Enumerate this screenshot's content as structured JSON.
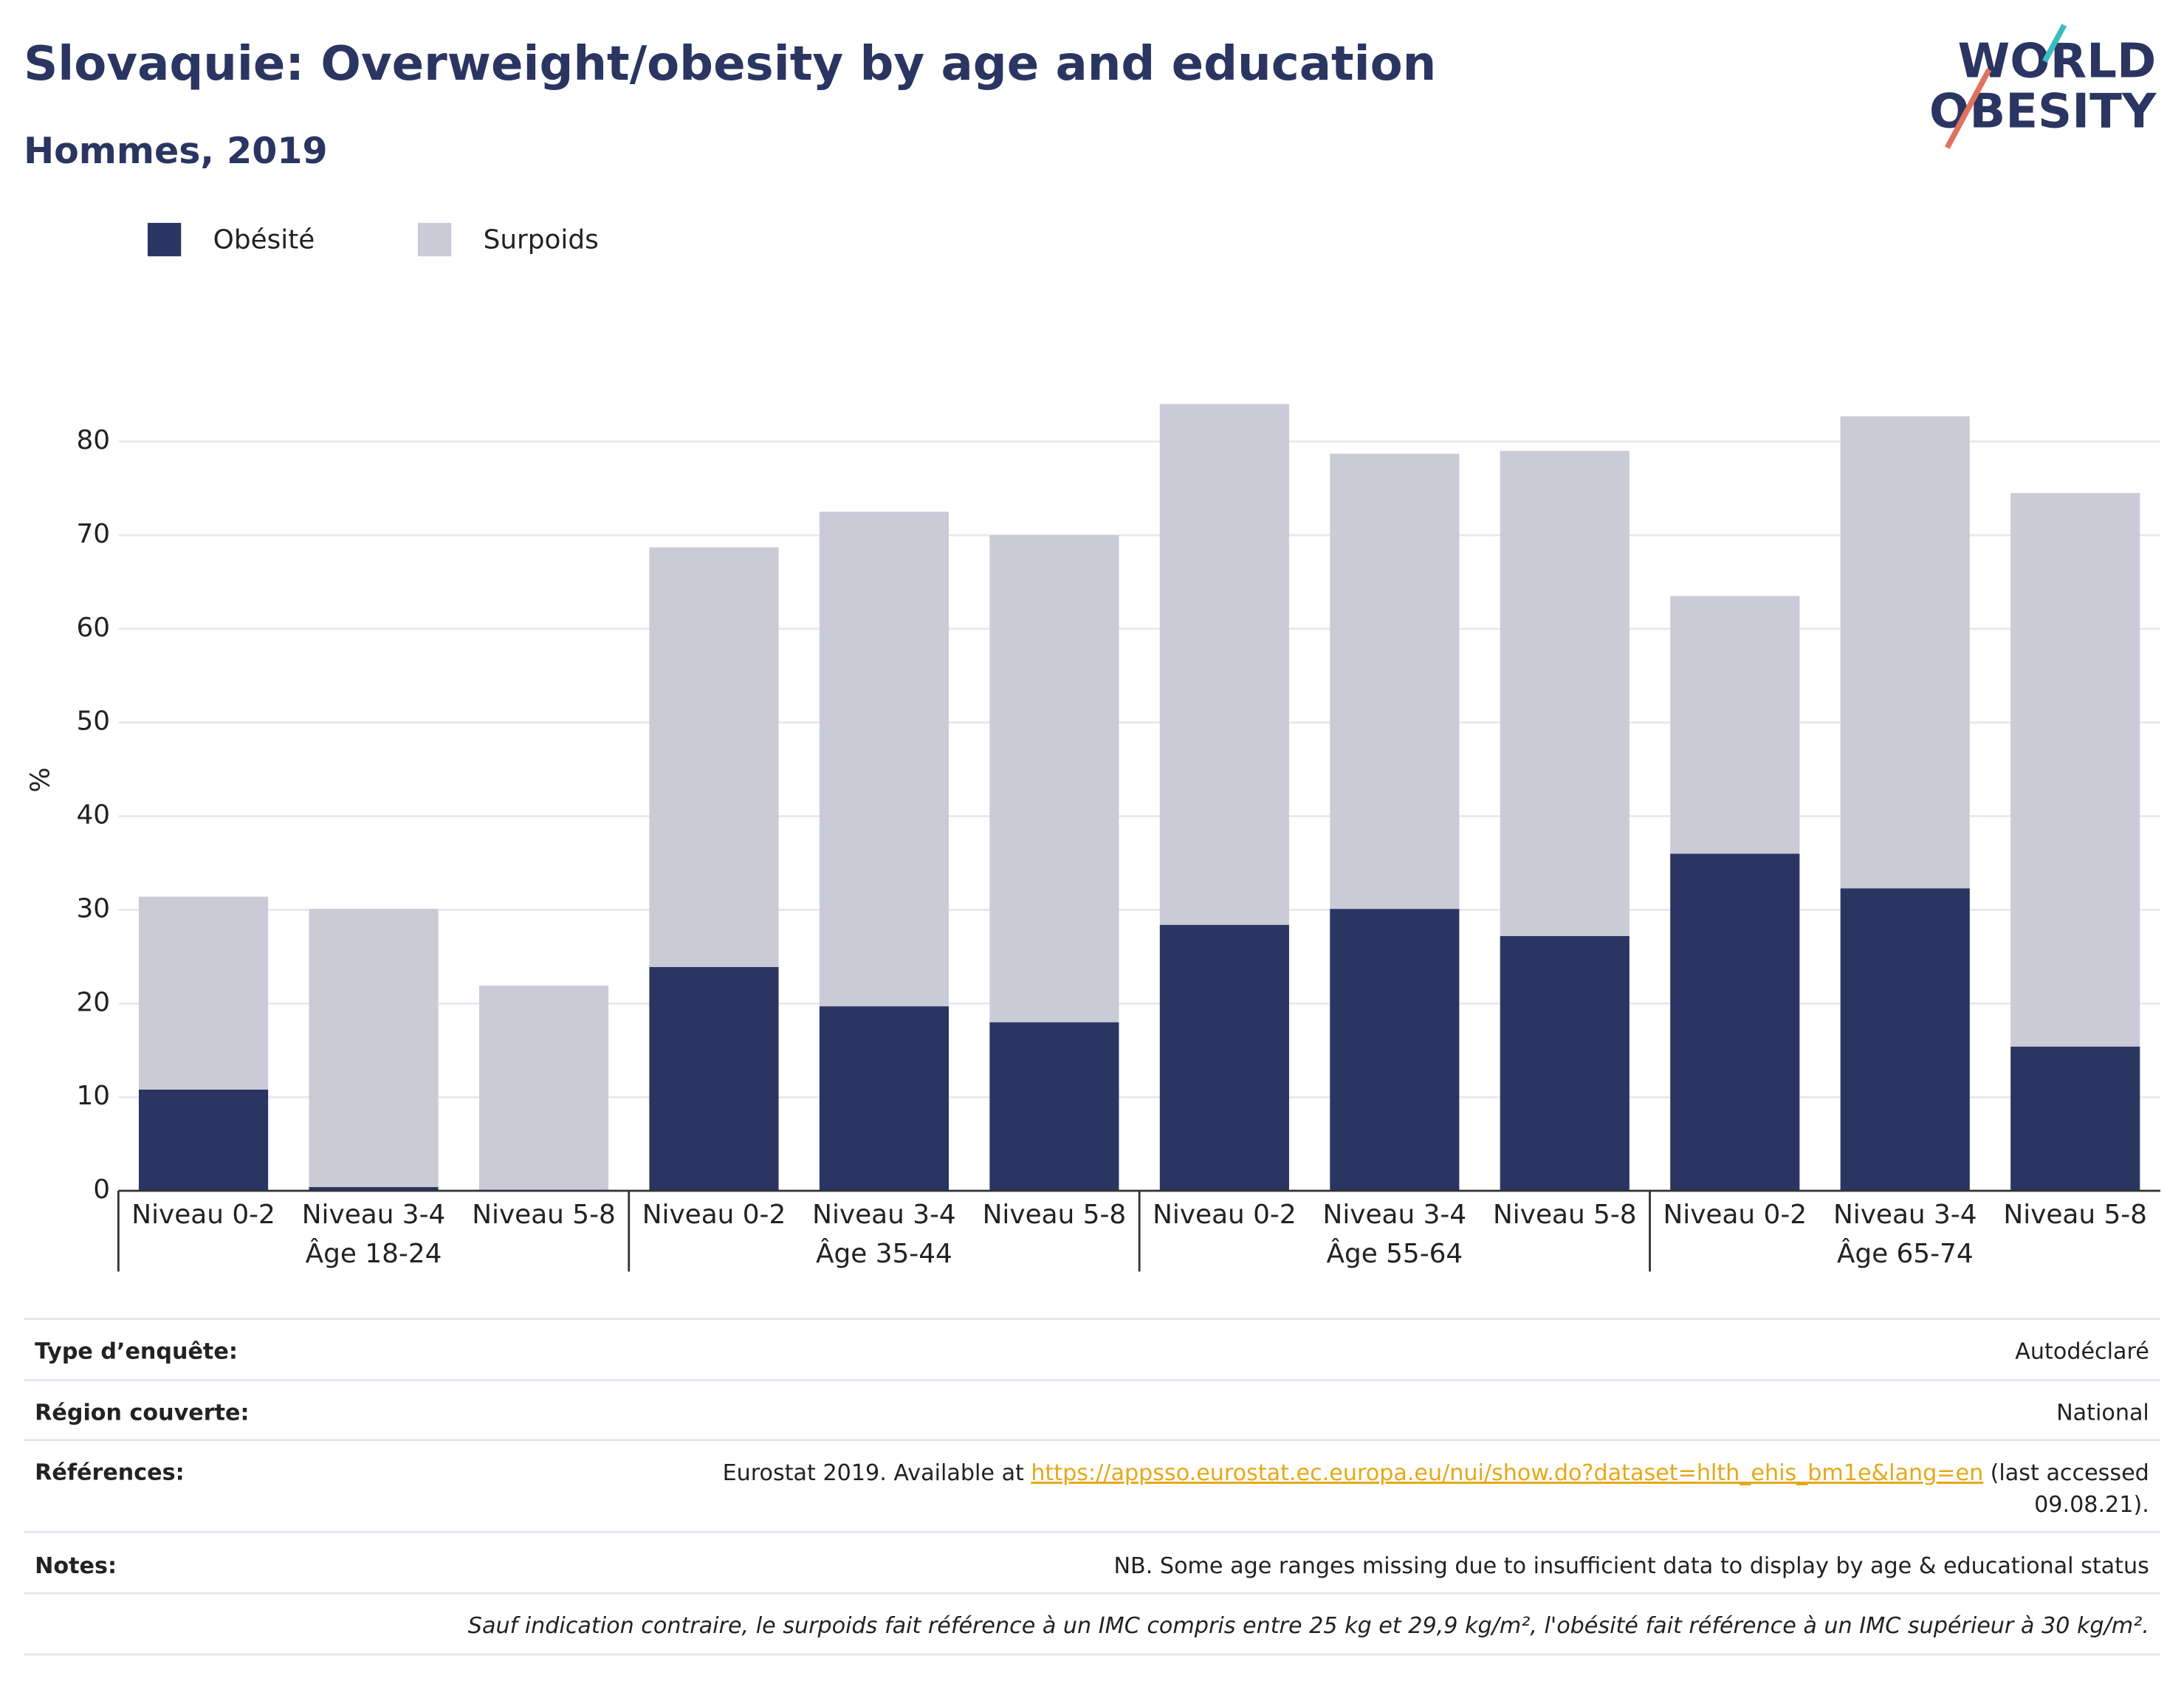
{
  "chart_data": {
    "type": "bar",
    "stacked": true,
    "title": "Slovaquie: Overweight/obesity by age and education",
    "subtitle": "Hommes, 2019",
    "y_label": "%",
    "categories": [
      "Niveau 0-2",
      "Niveau 3-4",
      "Niveau 5-8",
      "Niveau 0-2",
      "Niveau 3-4",
      "Niveau 5-8",
      "Niveau 0-2",
      "Niveau 3-4",
      "Niveau 5-8",
      "Niveau 0-2",
      "Niveau 3-4",
      "Niveau 5-8"
    ],
    "groups": [
      "Âge 18-24",
      "Âge 35-44",
      "Âge 55-64",
      "Âge 65-74"
    ],
    "series": [
      {
        "name": "Obésité",
        "color": "#2a3561",
        "values": [
          10.8,
          0.4,
          0,
          23.9,
          19.7,
          18.0,
          28.4,
          30.1,
          27.2,
          36.0,
          32.3,
          15.4
        ]
      },
      {
        "name": "Surpoids",
        "color": "#cacbd7",
        "values": [
          20.6,
          29.7,
          21.9,
          44.8,
          52.8,
          52.0,
          55.6,
          48.6,
          51.8,
          27.5,
          50.4,
          59.1
        ]
      }
    ],
    "ylim": [
      0,
      85
    ],
    "yticks": [
      0,
      10,
      20,
      30,
      40,
      50,
      60,
      70,
      80
    ],
    "grid": true,
    "legend": "top-left"
  },
  "logo": [
    "WORLD",
    "OBESITY"
  ],
  "footer": {
    "rows": [
      {
        "label": "Type d’enquête:",
        "value": "Autodéclaré"
      },
      {
        "label": "Région couverte:",
        "value": "National"
      },
      {
        "label": "Références:",
        "parts": [
          "Eurostat 2019. Available at",
          "https://appsso.eurostat.ec.europa.eu/nui/show.do?dataset=hlth_ehis_bm1e&lang=en",
          "(last accessed",
          "09.08.21)."
        ]
      },
      {
        "label": "Notes:",
        "value": "NB. Some age ranges missing due to insufficient data to display by age & educational status"
      }
    ],
    "note": "Sauf indication contraire, le surpoids fait référence à un IMC compris entre 25 kg et 29,9 kg/m², l'obésité fait référence à un IMC supérieur à 30 kg/m²."
  }
}
